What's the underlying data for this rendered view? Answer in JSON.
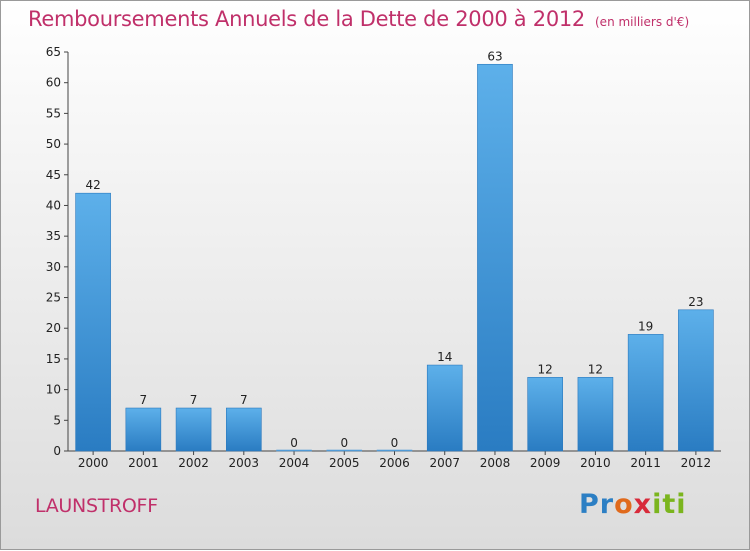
{
  "chart_data": {
    "type": "bar",
    "title": "Remboursements Annuels de la Dette de 2000 à 2012",
    "subtitle": "(en milliers d'€)",
    "place": "LAUNSTROFF",
    "logo": "Proxiti",
    "categories": [
      "2000",
      "2001",
      "2002",
      "2003",
      "2004",
      "2005",
      "2006",
      "2007",
      "2008",
      "2009",
      "2010",
      "2011",
      "2012"
    ],
    "values": [
      42,
      7,
      7,
      7,
      0,
      0,
      0,
      14,
      63,
      12,
      12,
      19,
      23
    ],
    "ylim": [
      0,
      65
    ],
    "yticks": [
      0,
      5,
      10,
      15,
      20,
      25,
      30,
      35,
      40,
      45,
      50,
      55,
      60,
      65
    ],
    "grid": false,
    "bar_color": "#3a8fd6"
  }
}
